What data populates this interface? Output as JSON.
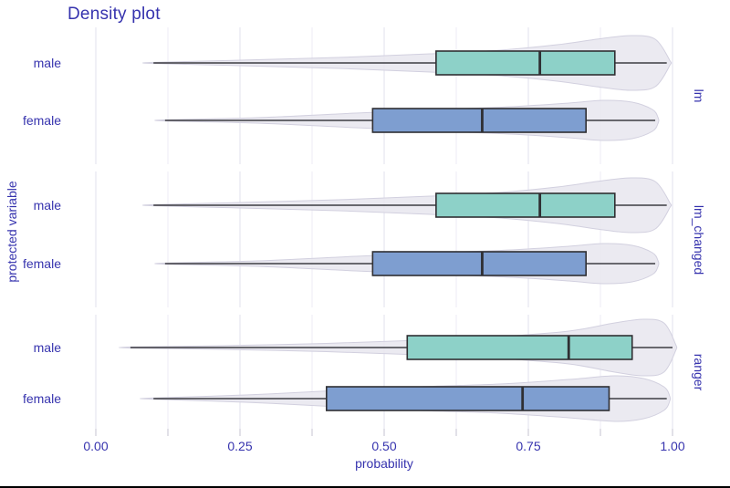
{
  "title": "Density plot",
  "colors": {
    "text": "#3633AE",
    "background": "#FFFFFF",
    "grid_major": "#E2E0EE",
    "grid_minor": "#ECEBF4",
    "axis_tick": "#C4C3D1",
    "violin_fill": "#E9E8F0",
    "violin_stroke": "#D2D0DF",
    "box_stroke": "#2F2F33",
    "whisker": "#3C3C42",
    "male_fill": "#8DD1C8",
    "female_fill": "#7E9ED0",
    "frame_bottom": "#000000"
  },
  "chart_data": {
    "type": "violin-boxplot",
    "title": "Density plot",
    "xlabel": "probability",
    "ylabel": "protected variable",
    "xlim": [
      0.0,
      1.0
    ],
    "x_ticks": [
      "0.00",
      "0.25",
      "0.50",
      "0.75",
      "1.00"
    ],
    "x_tick_values": [
      0.0,
      0.25,
      0.5,
      0.75,
      1.0
    ],
    "x_minor_step": 0.125,
    "grid": true,
    "legend": "none",
    "facet_side": "right",
    "facets": [
      {
        "label": "lm",
        "rows": [
          {
            "group": "male",
            "fill_key": "male_fill",
            "box": {
              "whisker_low": 0.1,
              "q1": 0.59,
              "median": 0.77,
              "q3": 0.9,
              "whisker_high": 0.99
            },
            "violin_profile": [
              [
                0.1,
                0.6
              ],
              [
                0.25,
                3
              ],
              [
                0.42,
                6
              ],
              [
                0.58,
                10
              ],
              [
                0.7,
                14
              ],
              [
                0.8,
                20
              ],
              [
                0.88,
                27
              ],
              [
                0.93,
                30
              ],
              [
                0.97,
                26
              ],
              [
                0.995,
                3
              ]
            ]
          },
          {
            "group": "female",
            "fill_key": "female_fill",
            "box": {
              "whisker_low": 0.12,
              "q1": 0.48,
              "median": 0.67,
              "q3": 0.85,
              "whisker_high": 0.97
            },
            "violin_profile": [
              [
                0.122,
                0.6
              ],
              [
                0.28,
                3
              ],
              [
                0.45,
                8
              ],
              [
                0.6,
                12
              ],
              [
                0.72,
                15
              ],
              [
                0.82,
                19
              ],
              [
                0.88,
                22
              ],
              [
                0.93,
                20
              ],
              [
                0.965,
                12
              ],
              [
                0.975,
                3
              ]
            ]
          }
        ]
      },
      {
        "label": "lm_changed",
        "rows": [
          {
            "group": "male",
            "fill_key": "male_fill",
            "box": {
              "whisker_low": 0.1,
              "q1": 0.59,
              "median": 0.77,
              "q3": 0.9,
              "whisker_high": 0.99
            },
            "violin_profile": [
              [
                0.1,
                0.6
              ],
              [
                0.25,
                3
              ],
              [
                0.42,
                6
              ],
              [
                0.58,
                10
              ],
              [
                0.7,
                14
              ],
              [
                0.8,
                20
              ],
              [
                0.88,
                27
              ],
              [
                0.93,
                30
              ],
              [
                0.97,
                26
              ],
              [
                0.995,
                3
              ]
            ]
          },
          {
            "group": "female",
            "fill_key": "female_fill",
            "box": {
              "whisker_low": 0.12,
              "q1": 0.48,
              "median": 0.67,
              "q3": 0.85,
              "whisker_high": 0.97
            },
            "violin_profile": [
              [
                0.122,
                0.6
              ],
              [
                0.28,
                3
              ],
              [
                0.45,
                8
              ],
              [
                0.6,
                12
              ],
              [
                0.72,
                15
              ],
              [
                0.82,
                19
              ],
              [
                0.88,
                22
              ],
              [
                0.93,
                20
              ],
              [
                0.965,
                12
              ],
              [
                0.975,
                3
              ]
            ]
          }
        ]
      },
      {
        "label": "ranger",
        "rows": [
          {
            "group": "male",
            "fill_key": "male_fill",
            "box": {
              "whisker_low": 0.06,
              "q1": 0.54,
              "median": 0.82,
              "q3": 0.93,
              "whisker_high": 1.0
            },
            "violin_profile": [
              [
                0.06,
                0.6
              ],
              [
                0.22,
                2
              ],
              [
                0.4,
                4.5
              ],
              [
                0.56,
                8
              ],
              [
                0.7,
                12
              ],
              [
                0.82,
                18
              ],
              [
                0.9,
                27
              ],
              [
                0.95,
                31
              ],
              [
                0.985,
                27
              ],
              [
                1.005,
                4
              ]
            ]
          },
          {
            "group": "female",
            "fill_key": "female_fill",
            "box": {
              "whisker_low": 0.1,
              "q1": 0.4,
              "median": 0.74,
              "q3": 0.89,
              "whisker_high": 0.99
            },
            "violin_profile": [
              [
                0.097,
                0.6
              ],
              [
                0.26,
                4
              ],
              [
                0.42,
                9
              ],
              [
                0.56,
                13
              ],
              [
                0.7,
                16
              ],
              [
                0.82,
                21
              ],
              [
                0.9,
                25
              ],
              [
                0.95,
                22
              ],
              [
                0.985,
                13
              ],
              [
                0.995,
                3
              ]
            ]
          }
        ]
      }
    ]
  }
}
